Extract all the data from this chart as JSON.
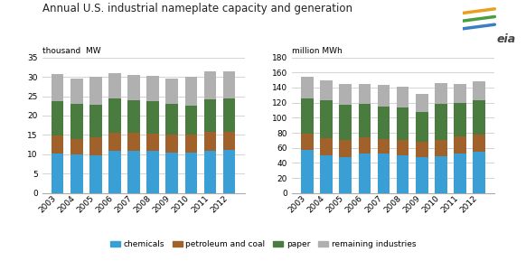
{
  "years": [
    2003,
    2004,
    2005,
    2006,
    2007,
    2008,
    2009,
    2010,
    2011,
    2012
  ],
  "capacity": {
    "chemicals": [
      10.3,
      10.0,
      9.8,
      11.0,
      11.0,
      10.8,
      10.5,
      10.5,
      11.0,
      11.1
    ],
    "petroleum_and_coal": [
      4.5,
      4.0,
      4.5,
      4.5,
      4.5,
      4.5,
      4.5,
      4.5,
      4.8,
      4.8
    ],
    "paper": [
      9.0,
      9.0,
      8.5,
      9.0,
      8.5,
      8.5,
      8.0,
      7.5,
      8.5,
      8.5
    ],
    "remaining_industries": [
      6.8,
      6.5,
      7.2,
      6.5,
      6.5,
      6.5,
      6.5,
      7.5,
      7.0,
      7.0
    ]
  },
  "generation": {
    "chemicals": [
      57,
      50,
      48,
      52,
      52,
      50,
      48,
      49,
      53,
      55
    ],
    "petroleum_and_coal": [
      22,
      23,
      22,
      22,
      20,
      21,
      20,
      22,
      22,
      23
    ],
    "paper": [
      47,
      50,
      47,
      45,
      43,
      43,
      40,
      47,
      45,
      45
    ],
    "remaining_industries": [
      28,
      27,
      28,
      26,
      28,
      27,
      24,
      28,
      25,
      25
    ]
  },
  "colors": {
    "chemicals": "#3a9fd5",
    "petroleum_and_coal": "#a0622a",
    "paper": "#4a7c3f",
    "remaining_industries": "#b0b0b0"
  },
  "title": "Annual U.S. industrial nameplate capacity and generation",
  "ylabel_left": "thousand  MW",
  "ylabel_right": "million MWh",
  "ylim_left": [
    0,
    35
  ],
  "ylim_right": [
    0,
    180
  ],
  "yticks_left": [
    0,
    5,
    10,
    15,
    20,
    25,
    30,
    35
  ],
  "yticks_right": [
    0,
    20,
    40,
    60,
    80,
    100,
    120,
    140,
    160,
    180
  ],
  "legend_labels": [
    "chemicals",
    "petroleum and coal",
    "paper",
    "remaining industries"
  ],
  "background_color": "#ffffff"
}
